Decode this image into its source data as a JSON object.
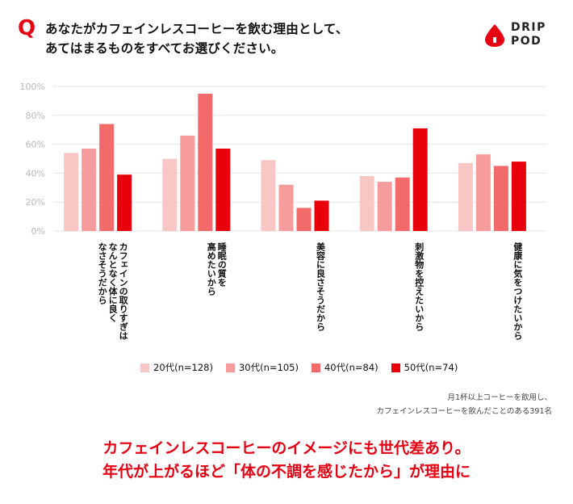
{
  "question": {
    "mark": "Q",
    "line1": "あなたがカフェインレスコーヒーを飲む理由として、",
    "line2": "あてはまるものをすべてお選びください。"
  },
  "logo": {
    "line1": "DRIP",
    "line2": "POD"
  },
  "colors": {
    "accent": "#e60012",
    "s20": "#f9c6c6",
    "s30": "#f79c9c",
    "s40": "#f26a6a",
    "s50": "#e8000b",
    "grid": "#e6e6e6"
  },
  "chart_data": {
    "type": "bar",
    "categories": [
      "カフェインの取りすぎは\nなんとなく体に良く\nなさそうだから",
      "睡眠の質を\n高めたいから",
      "美容に良さそうだから",
      "刺激物を控えたいから",
      "健康に気をつけたいから"
    ],
    "series": [
      {
        "name": "20代(n=128)",
        "values": [
          54,
          50,
          49,
          38,
          47
        ]
      },
      {
        "name": "30代(n=105)",
        "values": [
          57,
          66,
          32,
          34,
          53
        ]
      },
      {
        "name": "40代(n=84)",
        "values": [
          74,
          95,
          16,
          37,
          45
        ]
      },
      {
        "name": "50代(n=74)",
        "values": [
          39,
          57,
          21,
          71,
          48
        ]
      }
    ],
    "yticks": [
      "0%",
      "20%",
      "40%",
      "60%",
      "80%",
      "100%"
    ],
    "ylim": [
      0,
      100
    ],
    "legend_position": "bottom",
    "grid": true
  },
  "note": {
    "line1": "月1杯以上コーヒーを飲用し、",
    "line2": "カフェインレスコーヒーを飲んだことのある391名"
  },
  "headline": {
    "line1": "カフェインレスコーヒーのイメージにも世代差あり。",
    "line2": "年代が上がるほど「体の不調を感じたから」が理由に"
  }
}
